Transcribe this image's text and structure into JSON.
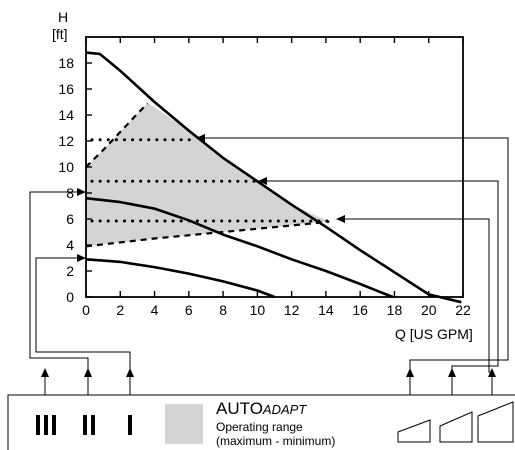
{
  "chart_data": {
    "type": "line",
    "title": "",
    "xlabel": "Q [US GPM]",
    "ylabel_top": "H",
    "ylabel_unit": "[ft]",
    "xlim": [
      0,
      22
    ],
    "ylim": [
      0,
      20
    ],
    "xticks": [
      0,
      2,
      4,
      6,
      8,
      10,
      12,
      14,
      16,
      18,
      20,
      22
    ],
    "yticks": [
      0,
      2,
      4,
      6,
      8,
      10,
      12,
      14,
      16,
      18
    ],
    "grid": false,
    "series": [
      {
        "name": "III",
        "style": "solid",
        "x": [
          0,
          0.8,
          2,
          4,
          6,
          8,
          10,
          12,
          14,
          16,
          18,
          20,
          21.9
        ],
        "y": [
          18.8,
          18.7,
          17.4,
          15.0,
          12.8,
          10.7,
          8.9,
          7.1,
          5.4,
          3.6,
          1.9,
          0.2,
          -0.4
        ]
      },
      {
        "name": "II",
        "style": "solid",
        "x": [
          0,
          2,
          4,
          6,
          8,
          10,
          12,
          14,
          16,
          17.9
        ],
        "y": [
          7.6,
          7.3,
          6.8,
          5.9,
          4.8,
          3.9,
          2.9,
          2.0,
          1.0,
          0.0
        ]
      },
      {
        "name": "I",
        "style": "solid",
        "x": [
          0,
          1,
          2,
          4,
          6,
          8,
          10,
          11
        ],
        "y": [
          2.9,
          2.8,
          2.7,
          2.3,
          1.8,
          1.2,
          0.5,
          0.0
        ]
      },
      {
        "name": "AUTOADAPT max",
        "style": "dashed",
        "x": [
          0,
          1,
          2,
          3,
          3.6
        ],
        "y": [
          10.0,
          11.3,
          12.7,
          14.1,
          14.9
        ]
      },
      {
        "name": "AUTOADAPT min",
        "style": "dashed",
        "x": [
          0,
          4,
          8,
          12,
          14.2
        ],
        "y": [
          3.9,
          4.5,
          5.0,
          5.5,
          5.8
        ]
      }
    ],
    "setpoints": [
      {
        "y": 12.1,
        "x_end": 6.2
      },
      {
        "y": 8.9,
        "x_end": 10.5
      },
      {
        "y": 5.85,
        "x_end": 14.2
      }
    ],
    "operating_range_polygon": {
      "x": [
        0,
        0,
        1,
        2,
        3,
        3.6,
        4,
        6,
        8,
        10,
        12,
        14.2,
        12,
        8,
        4,
        0
      ],
      "y": [
        3.9,
        10.0,
        11.3,
        12.7,
        14.1,
        14.9,
        14.6,
        12.8,
        10.7,
        8.9,
        7.1,
        5.8,
        5.5,
        5.0,
        4.5,
        3.9
      ]
    }
  },
  "legend_panel": {
    "speed_labels": [
      "III",
      "II",
      "I"
    ],
    "auto_label_main": "AUTO",
    "auto_label_sub": "ADAPT",
    "operating_range_line1": "Operating range",
    "operating_range_line2": "(maximum - minimum)",
    "shading_color": "#d4d4d4"
  }
}
